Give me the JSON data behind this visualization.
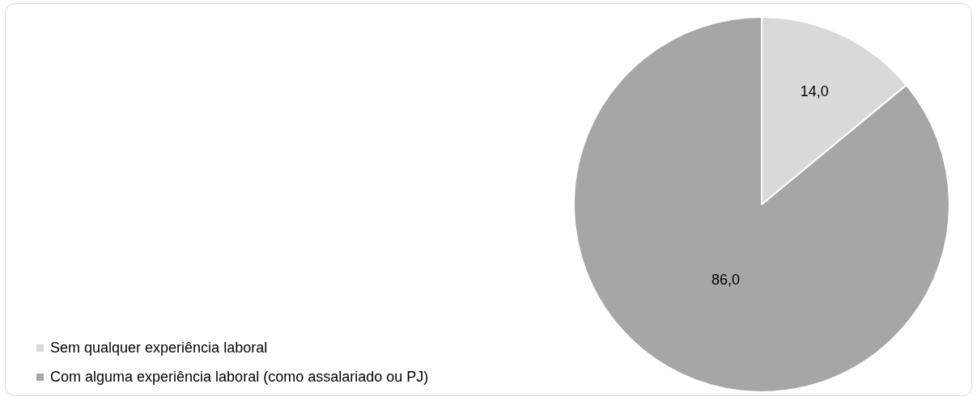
{
  "chart_data": {
    "type": "pie",
    "categories": [
      "Sem qualquer experiência laboral",
      "Com alguma experiência laboral (como assalariado ou PJ)"
    ],
    "values": [
      14,
      86
    ],
    "colors": [
      "#d9d9d9",
      "#a6a6a6"
    ],
    "value_labels": [
      "14,0",
      "86,0"
    ],
    "legend": "bottom left"
  }
}
